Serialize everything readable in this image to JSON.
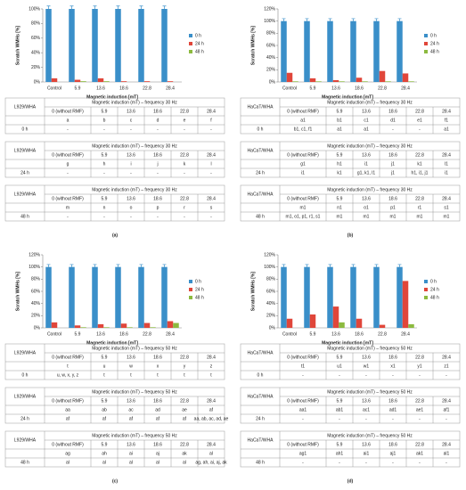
{
  "chart_data": [
    {
      "type": "bar",
      "categories": [
        "Control",
        "5.9",
        "13.6",
        "18.6",
        "22.8",
        "28.4"
      ],
      "ylabel": "Scratch WMHs [%]",
      "xlabel": "Magnetic induction [mT]",
      "ylim": [
        0,
        100
      ],
      "yticks": [
        {
          "value": 0,
          "label": "0%"
        },
        {
          "value": 20,
          "label": "20%"
        },
        {
          "value": 40,
          "label": "40%"
        },
        {
          "value": 60,
          "label": "60%"
        },
        {
          "value": 80,
          "label": "80%"
        },
        {
          "value": 100,
          "label": "100%"
        }
      ],
      "grid": false,
      "series": [
        {
          "name": "0 h",
          "color": "#3a8fc9",
          "values": [
            100,
            100,
            100,
            100,
            100,
            100
          ],
          "errors": [
            4,
            4,
            4,
            4,
            4,
            4
          ]
        },
        {
          "name": "24 h",
          "color": "#e0463a",
          "values": [
            5,
            3,
            5,
            1,
            1,
            1
          ]
        },
        {
          "name": "48 h",
          "color": "#8cba3f",
          "values": [
            0,
            1,
            1,
            0,
            0,
            0
          ]
        }
      ]
    },
    {
      "type": "bar",
      "categories": [
        "Control",
        "5.9",
        "13.6",
        "18.6",
        "22.8",
        "28.4"
      ],
      "ylabel": "Scratch WMHs [%]",
      "xlabel": "Magnetic induction [mT]",
      "ylim": [
        0,
        120
      ],
      "yticks": [
        {
          "value": 0,
          "label": "0%"
        },
        {
          "value": 20,
          "label": "20%"
        },
        {
          "value": 40,
          "label": "40%"
        },
        {
          "value": 60,
          "label": "60%"
        },
        {
          "value": 80,
          "label": "80%"
        },
        {
          "value": 100,
          "label": "100%"
        },
        {
          "value": 120,
          "label": "120%"
        }
      ],
      "grid": false,
      "series": [
        {
          "name": "0 h",
          "color": "#3a8fc9",
          "values": [
            100,
            100,
            100,
            100,
            100,
            100
          ],
          "errors": [
            4,
            4,
            4,
            4,
            4,
            4
          ]
        },
        {
          "name": "24 h",
          "color": "#e0463a",
          "values": [
            15,
            6,
            3,
            7,
            18,
            14
          ]
        },
        {
          "name": "48 h",
          "color": "#8cba3f",
          "values": [
            1,
            1,
            1,
            1,
            1,
            1
          ]
        }
      ]
    },
    {
      "type": "bar",
      "categories": [
        "Control",
        "5.9",
        "13.6",
        "18.6",
        "22.8",
        "28.4"
      ],
      "ylabel": "Scratch WMHs [%]",
      "xlabel": "Magnetic induction [mT]",
      "ylim": [
        0,
        120
      ],
      "yticks": [
        {
          "value": 0,
          "label": "0%"
        },
        {
          "value": 20,
          "label": "20%"
        },
        {
          "value": 40,
          "label": "40%"
        },
        {
          "value": 60,
          "label": "60%"
        },
        {
          "value": 80,
          "label": "80%"
        },
        {
          "value": 100,
          "label": "100%"
        },
        {
          "value": 120,
          "label": "120%"
        }
      ],
      "grid": false,
      "series": [
        {
          "name": "0 h",
          "color": "#3a8fc9",
          "values": [
            100,
            100,
            100,
            100,
            100,
            100
          ],
          "errors": [
            4,
            4,
            4,
            4,
            4,
            4
          ]
        },
        {
          "name": "24 h",
          "color": "#e0463a",
          "values": [
            9,
            4,
            6,
            7,
            8,
            11
          ]
        },
        {
          "name": "48 h",
          "color": "#8cba3f",
          "values": [
            0,
            1,
            1,
            1,
            1,
            8
          ]
        }
      ]
    },
    {
      "type": "bar",
      "categories": [
        "Control",
        "5.9",
        "13.6",
        "18.6",
        "22.8",
        "28.4"
      ],
      "ylabel": "Scratch WMHs [%]",
      "xlabel": "Magnetic induction [mT]",
      "ylim": [
        0,
        120
      ],
      "yticks": [
        {
          "value": 0,
          "label": "0%"
        },
        {
          "value": 20,
          "label": "20%"
        },
        {
          "value": 40,
          "label": "40%"
        },
        {
          "value": 60,
          "label": "60%"
        },
        {
          "value": 80,
          "label": "80%"
        },
        {
          "value": 100,
          "label": "100%"
        },
        {
          "value": 120,
          "label": "120%"
        }
      ],
      "grid": false,
      "series": [
        {
          "name": "0 h",
          "color": "#3a8fc9",
          "values": [
            100,
            100,
            100,
            100,
            100,
            100
          ],
          "errors": [
            4,
            4,
            4,
            4,
            4,
            4
          ]
        },
        {
          "name": "24 h",
          "color": "#e0463a",
          "values": [
            15,
            22,
            35,
            15,
            5,
            77
          ]
        },
        {
          "name": "48 h",
          "color": "#8cba3f",
          "values": [
            0,
            0,
            9,
            0,
            0,
            6
          ]
        }
      ]
    }
  ],
  "panels": [
    {
      "label": "(a)",
      "tables": [
        {
          "cell_label": "L929/WHA",
          "header": "Magnetic induction (mT) – frequency 30 Hz",
          "cols": [
            "0 (without RMF)",
            "5.9",
            "13.6",
            "18.6",
            "22.8",
            "28.4"
          ],
          "ids": [
            "a",
            "b",
            "c",
            "d",
            "e",
            "f"
          ],
          "time": "0 h",
          "results": [
            "-",
            "-",
            "-",
            "-",
            "-",
            "-"
          ]
        },
        {
          "cell_label": "L929/WHA",
          "header": "Magnetic induction (mT) – frequency 30 Hz",
          "cols": [
            "0 (without RMF)",
            "5.9",
            "13.6",
            "18.6",
            "22.8",
            "28.4"
          ],
          "ids": [
            "g",
            "h",
            "i",
            "j",
            "k",
            "l"
          ],
          "time": "24 h",
          "results": [
            "-",
            "-",
            "-",
            "-",
            "-",
            "-"
          ]
        },
        {
          "cell_label": "L929/WHA",
          "header": "Magnetic induction (mT) – frequency 30 Hz",
          "cols": [
            "0 (without RMF)",
            "5.9",
            "13.6",
            "18.6",
            "22.8",
            "28.4"
          ],
          "ids": [
            "m",
            "n",
            "o",
            "p",
            "r",
            "s"
          ],
          "time": "48 h",
          "results": [
            "-",
            "-",
            "-",
            "-",
            "-",
            "-"
          ]
        }
      ]
    },
    {
      "label": "(b)",
      "tables": [
        {
          "cell_label": "HaCaT/WHA",
          "header": "Magnetic induction (mT) – frequency 30 Hz",
          "cols": [
            "0 (without RMF)",
            "5.9",
            "13.6",
            "18.6",
            "22.8",
            "28.4"
          ],
          "ids": [
            "a1",
            "b1",
            "c1",
            "d1",
            "e1",
            "f1"
          ],
          "time": "0 h",
          "results": [
            "b1, c1, f1",
            "a1",
            "a1",
            "-",
            "-",
            "a1"
          ]
        },
        {
          "cell_label": "HaCaT/WHA",
          "header": "Magnetic induction (mT) – frequency 30 Hz",
          "cols": [
            "0 (without RMF)",
            "5.9",
            "13.6",
            "18.6",
            "22.8",
            "28.4"
          ],
          "ids": [
            "g1",
            "h1",
            "i1",
            "j1",
            "k1",
            "l1"
          ],
          "time": "24 h",
          "results": [
            "i1",
            "k1",
            "g1, k1, l1",
            "j1",
            "h1, i1, j1",
            "i1"
          ]
        },
        {
          "cell_label": "HaCaT/WHA",
          "header": "Magnetic induction (mT) – frequency 30 Hz",
          "cols": [
            "0 (without RMF)",
            "5.9",
            "13.6",
            "18.6",
            "22.8",
            "28.4"
          ],
          "ids": [
            "m1",
            "n1",
            "o1",
            "p1",
            "r1",
            "s1"
          ],
          "time": "48 h",
          "results": [
            "m1, o1, p1, r1, s1",
            "m1",
            "m1",
            "m1",
            "m1",
            "m1"
          ]
        }
      ]
    },
    {
      "label": "(c)",
      "tables": [
        {
          "cell_label": "L929/WHA",
          "header": "Magnetic induction (mT) – frequency 50 Hz",
          "cols": [
            "0 (without RMF)",
            "5.9",
            "13.6",
            "18.6",
            "22.8",
            "28.4"
          ],
          "ids": [
            "t",
            "u",
            "w",
            "x",
            "y",
            "z"
          ],
          "time": "0 h",
          "results": [
            "u, w, x, y, z",
            "t",
            "t",
            "t",
            "t",
            "t"
          ]
        },
        {
          "cell_label": "L929/WHA",
          "header": "Magnetic induction (mT) – frequency 50 Hz",
          "cols": [
            "0 (without RMF)",
            "5.9",
            "13.6",
            "18.6",
            "22.8",
            "28.4"
          ],
          "ids": [
            "aa",
            "ab",
            "ac",
            "ad",
            "ae",
            "af"
          ],
          "time": "24 h",
          "results": [
            "af",
            "af",
            "af",
            "af",
            "af",
            "aa, ab, ac, ad, ae"
          ]
        },
        {
          "cell_label": "L929/WHA",
          "header": "Magnetic induction (mT) – frequency 50 Hz",
          "cols": [
            "0 (without RMF)",
            "5.9",
            "13.6",
            "18.6",
            "22.8",
            "28.4"
          ],
          "ids": [
            "ag",
            "ah",
            "ai",
            "aj",
            "ak",
            "al"
          ],
          "time": "48 h",
          "results": [
            "al",
            "al",
            "al",
            "al",
            "al",
            "ag, ah, ai, aj, ak"
          ]
        }
      ]
    },
    {
      "label": "(d)",
      "tables": [
        {
          "cell_label": "HaCaT/WHA",
          "header": "Magnetic induction (mT) – frequency 50 Hz",
          "cols": [
            "0 (without RMF)",
            "5.9",
            "13.6",
            "18.6",
            "22.8",
            "28.4"
          ],
          "ids": [
            "t1",
            "u1",
            "w1",
            "x1",
            "y1",
            "z1"
          ],
          "time": "0 h",
          "results": [
            "-",
            "-",
            "-",
            "-",
            "-",
            "-"
          ]
        },
        {
          "cell_label": "HaCaT/WHA",
          "header": "Magnetic induction (mT) – frequency 50 Hz",
          "cols": [
            "0 (without RMF)",
            "5.9",
            "13.6",
            "18.6",
            "22.8",
            "28.4"
          ],
          "ids": [
            "aa1",
            "ab1",
            "ac1",
            "ad1",
            "ae1",
            "af1"
          ],
          "time": "24 h",
          "results": [
            "-",
            "-",
            "-",
            "-",
            "-",
            "-"
          ]
        },
        {
          "cell_label": "HaCaT/WHA",
          "header": "Magnetic induction (mT) – frequency 50 Hz",
          "cols": [
            "0 (without RMF)",
            "5.9",
            "13.6",
            "18.6",
            "22.8",
            "28.4"
          ],
          "ids": [
            "ag1",
            "ah1",
            "ai1",
            "aj1",
            "ak1",
            "al1"
          ],
          "time": "48 h",
          "results": [
            "-",
            "-",
            "-",
            "-",
            "-",
            "-"
          ]
        }
      ]
    }
  ]
}
